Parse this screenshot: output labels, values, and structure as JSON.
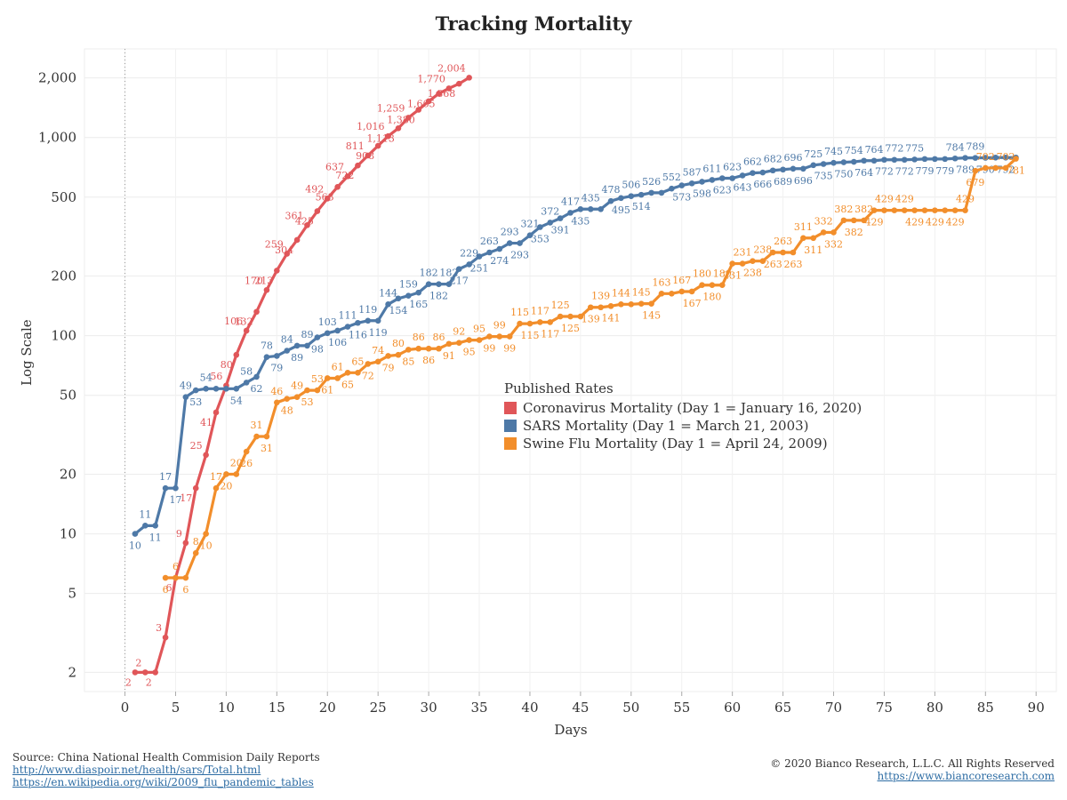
{
  "chart_data": {
    "type": "line",
    "title": "Tracking Mortality",
    "xlabel": "Days",
    "ylabel": "Log Scale",
    "y_scale": "log",
    "ylim": [
      1.6,
      2800
    ],
    "xlim": [
      -4,
      92
    ],
    "x_ticks": [
      0,
      5,
      10,
      15,
      20,
      25,
      30,
      35,
      40,
      45,
      50,
      55,
      60,
      65,
      70,
      75,
      80,
      85,
      90
    ],
    "y_ticks": [
      2,
      5,
      10,
      20,
      50,
      100,
      200,
      500,
      1000,
      2000
    ],
    "y_tick_labels": [
      "2",
      "5",
      "10",
      "20",
      "50",
      "100",
      "200",
      "500",
      "1,000",
      "2,000"
    ],
    "grid": true,
    "legend": {
      "title": "Published Rates",
      "placement": "center-right"
    },
    "series": [
      {
        "name": "Coronavirus Mortality (Day 1 = January 16, 2020)",
        "color": "#e05659",
        "x": [
          1,
          2,
          3,
          4,
          5,
          6,
          7,
          8,
          9,
          10,
          11,
          12,
          13,
          14,
          15,
          16,
          17,
          18,
          19,
          20,
          21,
          22,
          23,
          24,
          25,
          26,
          27,
          28,
          29,
          30,
          31,
          32,
          33,
          34
        ],
        "values": [
          2,
          2,
          2,
          3,
          6,
          9,
          17,
          25,
          41,
          56,
          80,
          106,
          132,
          170,
          213,
          259,
          304,
          361,
          425,
          492,
          563,
          637,
          722,
          811,
          908,
          1016,
          1113,
          1259,
          1380,
          1523,
          1665,
          1770,
          1868,
          2004
        ],
        "labels": [
          "2",
          "2",
          "2",
          "3",
          "6",
          "9",
          "17",
          "25",
          "41",
          "56",
          "80",
          "106",
          "132",
          "170",
          "213",
          "259",
          "304",
          "361",
          "425",
          "492",
          "563",
          "637",
          "722",
          "811",
          "908",
          "1,016",
          "1,113",
          "1,259",
          "1,380",
          "",
          "1,665",
          "1,770",
          "1,868",
          "2,004"
        ]
      },
      {
        "name": "SARS Mortality  (Day 1 = March 21, 2003)",
        "color": "#4e79a7",
        "x": [
          1,
          2,
          3,
          4,
          5,
          6,
          7,
          8,
          9,
          10,
          11,
          12,
          13,
          14,
          15,
          16,
          17,
          18,
          19,
          20,
          21,
          22,
          23,
          24,
          25,
          26,
          27,
          28,
          29,
          30,
          31,
          32,
          33,
          34,
          35,
          36,
          37,
          38,
          39,
          40,
          41,
          42,
          43,
          44,
          45,
          46,
          47,
          48,
          49,
          50,
          51,
          52,
          53,
          54,
          55,
          56,
          57,
          58,
          59,
          60,
          61,
          62,
          63,
          64,
          65,
          66,
          67,
          68,
          69,
          70,
          71,
          72,
          73,
          74,
          75,
          76,
          77,
          78,
          79,
          80,
          81,
          82,
          83,
          84,
          85,
          86,
          87,
          88
        ],
        "values": [
          10,
          11,
          11,
          17,
          17,
          49,
          53,
          54,
          54,
          54,
          54,
          58,
          62,
          78,
          79,
          84,
          89,
          89,
          98,
          103,
          106,
          111,
          116,
          119,
          119,
          144,
          154,
          159,
          165,
          182,
          182,
          182,
          217,
          229,
          251,
          263,
          274,
          293,
          293,
          321,
          353,
          372,
          391,
          417,
          435,
          435,
          435,
          478,
          495,
          506,
          514,
          526,
          526,
          552,
          573,
          587,
          598,
          611,
          623,
          623,
          643,
          662,
          666,
          682,
          689,
          696,
          696,
          725,
          735,
          745,
          750,
          754,
          764,
          764,
          772,
          772,
          772,
          775,
          779,
          779,
          779,
          784,
          789,
          789,
          790,
          792,
          792,
          792
        ],
        "labels": [
          "10",
          "11",
          "11",
          "17",
          "17",
          "49",
          "53",
          "54",
          "",
          "",
          "54",
          "58",
          "62",
          "78",
          "79",
          "84",
          "89",
          "89",
          "98",
          "103",
          "106",
          "111",
          "116",
          "119",
          "119",
          "144",
          "154",
          "159",
          "165",
          "182",
          "182",
          "182",
          "217",
          "229",
          "251",
          "263",
          "274",
          "293",
          "293",
          "321",
          "353",
          "372",
          "391",
          "417",
          "435",
          "435",
          "",
          "478",
          "495",
          "506",
          "514",
          "526",
          "",
          "552",
          "573",
          "587",
          "598",
          "611",
          "623",
          "623",
          "643",
          "662",
          "666",
          "682",
          "689",
          "696",
          "696",
          "725",
          "735",
          "745",
          "750",
          "754",
          "764",
          "764",
          "772",
          "772",
          "772",
          "775",
          "779",
          "",
          "779",
          "784",
          "789",
          "789",
          "790",
          "",
          "792",
          ""
        ]
      },
      {
        "name": "Swine Flu Mortality  (Day 1 = April 24, 2009)",
        "color": "#f28e2b",
        "x": [
          4,
          5,
          6,
          7,
          8,
          9,
          10,
          11,
          12,
          13,
          14,
          15,
          16,
          17,
          18,
          19,
          20,
          21,
          22,
          23,
          24,
          25,
          26,
          27,
          28,
          29,
          30,
          31,
          32,
          33,
          34,
          35,
          36,
          37,
          38,
          39,
          40,
          41,
          42,
          43,
          44,
          45,
          46,
          47,
          48,
          49,
          50,
          51,
          52,
          53,
          54,
          55,
          56,
          57,
          58,
          59,
          60,
          61,
          62,
          63,
          64,
          65,
          66,
          67,
          68,
          69,
          70,
          71,
          72,
          73,
          74,
          75,
          76,
          77,
          78,
          79,
          80,
          81,
          82,
          83,
          84,
          85,
          86,
          87,
          88
        ],
        "values": [
          6,
          6,
          6,
          8,
          10,
          17,
          20,
          20,
          26,
          31,
          31,
          46,
          48,
          49,
          53,
          53,
          61,
          61,
          65,
          65,
          72,
          74,
          79,
          80,
          85,
          86,
          86,
          86,
          91,
          92,
          95,
          95,
          99,
          99,
          99,
          115,
          115,
          117,
          117,
          125,
          125,
          125,
          139,
          139,
          141,
          144,
          144,
          145,
          145,
          163,
          163,
          167,
          167,
          180,
          180,
          180,
          231,
          231,
          238,
          238,
          263,
          263,
          263,
          311,
          311,
          332,
          332,
          382,
          382,
          382,
          429,
          429,
          429,
          429,
          429,
          429,
          429,
          429,
          429,
          429,
          679,
          702,
          702,
          702,
          781
        ],
        "labels": [
          "6",
          "6",
          "6",
          "8",
          "10",
          "17",
          "20",
          "20",
          "26",
          "31",
          "31",
          "46",
          "48",
          "49",
          "53",
          "53",
          "61",
          "61",
          "65",
          "65",
          "72",
          "74",
          "79",
          "80",
          "85",
          "86",
          "86",
          "86",
          "91",
          "92",
          "95",
          "95",
          "99",
          "99",
          "99",
          "115",
          "115",
          "117",
          "117",
          "125",
          "125",
          "",
          "139",
          "139",
          "141",
          "144",
          "",
          "145",
          "145",
          "163",
          "",
          "167",
          "167",
          "180",
          "180",
          "180",
          "231",
          "231",
          "238",
          "238",
          "263",
          "263",
          "263",
          "311",
          "311",
          "332",
          "332",
          "382",
          "382",
          "382",
          "429",
          "429",
          "",
          "429",
          "429",
          "",
          "429",
          "",
          "429",
          "429",
          "679",
          "702",
          "",
          "702",
          "781"
        ]
      }
    ]
  },
  "footer": {
    "source": "Source: China National Health Commision Daily Reports",
    "link1": "http://www.diaspoir.net/health/sars/Total.html",
    "link2": "https://en.wikipedia.org/wiki/2009_flu_pandemic_tables",
    "copyright": "© 2020 Bianco Research, L.L.C. All Rights Reserved",
    "website": "https://www.biancoresearch.com"
  }
}
